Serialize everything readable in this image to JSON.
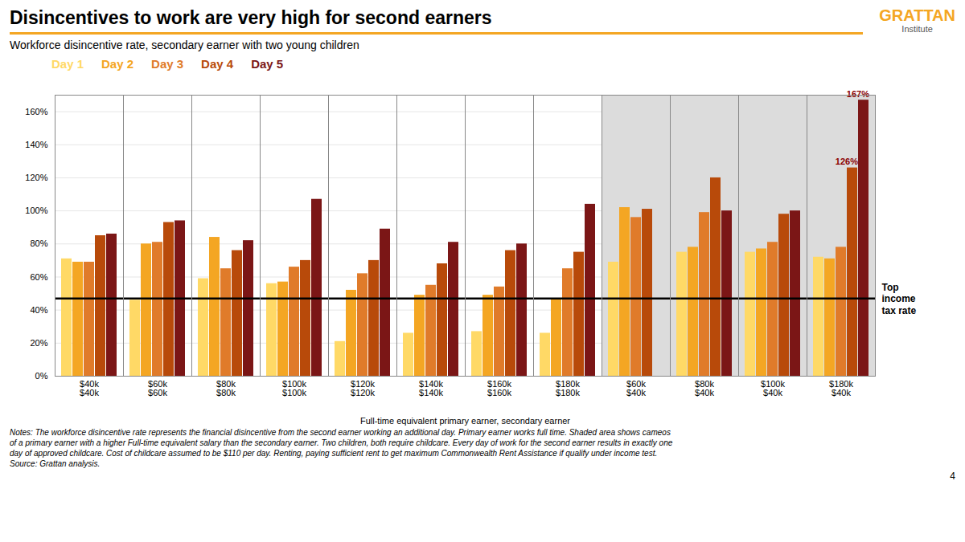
{
  "chart_data": {
    "type": "bar",
    "title": "Disincentives to work are very high for second earners",
    "subtitle": "Workforce disincentive rate, secondary earner with two young children",
    "xlabel": "Full-time equivalent primary earner, secondary earner",
    "categories": [
      "$40k\n$40k",
      "$60k\n$60k",
      "$80k\n$80k",
      "$100k\n$100k",
      "$120k\n$120k",
      "$140k\n$140k",
      "$160k\n$160k",
      "$180k\n$180k",
      "$60k\n$40k",
      "$80k\n$40k",
      "$100k\n$40k",
      "$180k\n$40k"
    ],
    "series": [
      {
        "name": "Day 1",
        "color": "#FFD966",
        "values": [
          0.71,
          0.46,
          0.59,
          0.56,
          0.21,
          0.26,
          0.27,
          0.26,
          0.69,
          0.75,
          0.75,
          0.72
        ]
      },
      {
        "name": "Day 2",
        "color": "#F4A623",
        "values": [
          0.69,
          0.8,
          0.84,
          0.57,
          0.52,
          0.49,
          0.49,
          0.47,
          1.02,
          0.78,
          0.77,
          0.71
        ]
      },
      {
        "name": "Day 3",
        "color": "#E07B2A",
        "values": [
          0.69,
          0.81,
          0.65,
          0.66,
          0.62,
          0.55,
          0.54,
          0.65,
          0.96,
          0.99,
          0.81,
          0.78
        ]
      },
      {
        "name": "Day 4",
        "color": "#B84A0A",
        "values": [
          0.85,
          0.93,
          0.76,
          0.7,
          0.7,
          0.68,
          0.76,
          0.75,
          1.01,
          1.2,
          0.98,
          1.26
        ]
      },
      {
        "name": "Day 5",
        "color": "#7B1616",
        "values": [
          0.86,
          0.94,
          0.82,
          1.07,
          0.89,
          0.81,
          0.8,
          1.04,
          null,
          1.0,
          1.0,
          1.67
        ]
      }
    ],
    "ylim": [
      0,
      1.7
    ],
    "yticks": [
      {
        "value": 0,
        "label": "0%"
      },
      {
        "value": 0.2,
        "label": "20%"
      },
      {
        "value": 0.4,
        "label": "40%"
      },
      {
        "value": 0.6,
        "label": "60%"
      },
      {
        "value": 0.8,
        "label": "80%"
      },
      {
        "value": 1.0,
        "label": "100%"
      },
      {
        "value": 1.2,
        "label": "120%"
      },
      {
        "value": 1.4,
        "label": "140%"
      },
      {
        "value": 1.6,
        "label": "160%"
      }
    ],
    "grid": true,
    "legend": "top",
    "shaded_categories": [
      "$60k\n$40k",
      "$80k\n$40k",
      "$100k\n$40k",
      "$180k\n$40k"
    ],
    "shaded_color": "#dcdcdc",
    "reference_line": {
      "value": 0.47,
      "label": "Top\nincome\ntax rate",
      "color": "#000000"
    },
    "annotations": [
      {
        "category": "$180k\n$40k",
        "series": "Day 4",
        "value": 1.26,
        "text": "126%",
        "color": "#8B0000"
      },
      {
        "category": "$180k\n$40k",
        "series": "Day 5",
        "value": 1.67,
        "text": "167%",
        "color": "#8B0000"
      }
    ],
    "branding": [
      "GRATTAN",
      "Institute"
    ],
    "notes": [
      "Notes: The workforce disincentive rate represents the financial disincentive from the second earner working an additional day. Primary earner works full time. Shaded area shows cameos",
      "of a primary earner with a higher Full-time equivalent salary than the secondary earner. Two children, both require childcare. Every day of work for the second earner results in exactly one",
      "day of approved childcare. Cost of childcare assumed to be $110 per day. Renting, paying sufficient rent to get maximum Commonwealth Rent Assistance if qualify under income test.",
      "Source: Grattan analysis."
    ],
    "page_number": "4"
  }
}
